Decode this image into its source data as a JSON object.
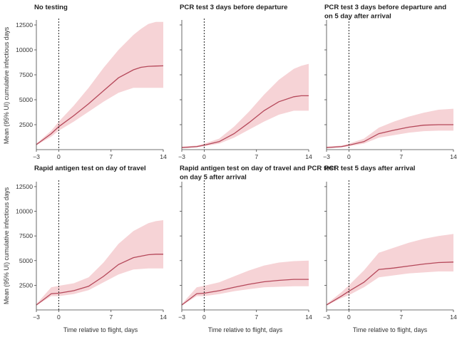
{
  "figure": {
    "ylabel": "Mean (95% UI) cumulative infectious days",
    "xlabel": "Time relative to flight, days"
  },
  "colors": {
    "band": "#f6d3d6",
    "line": "#b5485a",
    "axis": "#444444"
  },
  "chart_data": [
    {
      "type": "area",
      "title_lines": [
        "No testing"
      ],
      "xlabel": "",
      "ylabel": "Mean (95% UI) cumulative infectious days",
      "xlim": [
        -3,
        14
      ],
      "ylim": [
        0,
        13000
      ],
      "xticks": [
        -3,
        0,
        7,
        14
      ],
      "yticks": [
        2500,
        5000,
        7500,
        10000,
        12500
      ],
      "x": [
        -3,
        -1,
        0,
        2,
        4,
        6,
        8,
        10,
        11,
        12,
        13,
        14
      ],
      "mean": [
        500,
        1600,
        2300,
        3400,
        4600,
        5900,
        7200,
        8000,
        8250,
        8350,
        8380,
        8400
      ],
      "lower": [
        450,
        1300,
        1900,
        2800,
        3800,
        4800,
        5700,
        6200,
        6200,
        6200,
        6200,
        6200
      ],
      "upper": [
        600,
        1900,
        2800,
        4400,
        6200,
        8200,
        10000,
        11500,
        12100,
        12600,
        12800,
        12800
      ],
      "vline": 0
    },
    {
      "type": "area",
      "title_lines": [
        "PCR test 3 days before departure"
      ],
      "xlabel": "",
      "ylabel": "",
      "xlim": [
        -3,
        14
      ],
      "ylim": [
        0,
        13000
      ],
      "xticks": [
        -3,
        0,
        7,
        14
      ],
      "yticks": [
        2500,
        5000,
        7500,
        10000,
        12500
      ],
      "x": [
        -3,
        -1,
        0,
        2,
        4,
        6,
        8,
        10,
        12,
        13,
        14
      ],
      "mean": [
        200,
        300,
        450,
        800,
        1600,
        2700,
        3900,
        4800,
        5300,
        5400,
        5400
      ],
      "lower": [
        150,
        250,
        350,
        600,
        1200,
        2000,
        2800,
        3500,
        3900,
        3900,
        3900
      ],
      "upper": [
        300,
        400,
        600,
        1100,
        2300,
        3800,
        5500,
        7000,
        8100,
        8400,
        8600
      ],
      "vline": 0
    },
    {
      "type": "area",
      "title_lines": [
        "PCR test 3 days before departure and",
        "on 5 day after arrival"
      ],
      "xlabel": "",
      "ylabel": "",
      "xlim": [
        -3,
        14
      ],
      "ylim": [
        0,
        13000
      ],
      "xticks": [
        -3,
        0,
        7,
        14
      ],
      "yticks": [
        2500,
        5000,
        7500,
        10000,
        12500
      ],
      "x": [
        -3,
        -1,
        0,
        2,
        4,
        6,
        8,
        10,
        12,
        14
      ],
      "mean": [
        200,
        300,
        450,
        800,
        1600,
        1950,
        2250,
        2450,
        2500,
        2500
      ],
      "lower": [
        150,
        250,
        350,
        600,
        1200,
        1450,
        1700,
        1850,
        1900,
        1900
      ],
      "upper": [
        300,
        400,
        600,
        1100,
        2200,
        2800,
        3300,
        3700,
        4000,
        4100
      ],
      "vline": 0
    },
    {
      "type": "area",
      "title_lines": [
        "Rapid antigen test on day of travel"
      ],
      "xlabel": "Time relative to flight, days",
      "ylabel": "Mean (95% UI) cumulative infectious days",
      "xlim": [
        -3,
        14
      ],
      "ylim": [
        0,
        13000
      ],
      "xticks": [
        -3,
        0,
        7,
        14
      ],
      "yticks": [
        2500,
        5000,
        7500,
        10000,
        12500
      ],
      "x": [
        -3,
        -1,
        0,
        2,
        4,
        6,
        8,
        10,
        12,
        13,
        14
      ],
      "mean": [
        500,
        1650,
        1700,
        1950,
        2400,
        3400,
        4600,
        5300,
        5600,
        5650,
        5650
      ],
      "lower": [
        450,
        1400,
        1400,
        1600,
        2000,
        2800,
        3600,
        4100,
        4200,
        4200,
        4200
      ],
      "upper": [
        600,
        2300,
        2450,
        2700,
        3300,
        4800,
        6700,
        8000,
        8800,
        9000,
        9100
      ],
      "vline": 0
    },
    {
      "type": "area",
      "title_lines": [
        "Rapid antigen test on day of travel and PCR test",
        "on day 5 after arrival"
      ],
      "xlabel": "Time relative to flight, days",
      "ylabel": "",
      "xlim": [
        -3,
        14
      ],
      "ylim": [
        0,
        13000
      ],
      "xticks": [
        -3,
        0,
        7,
        14
      ],
      "yticks": [
        2500,
        5000,
        7500,
        10000,
        12500
      ],
      "x": [
        -3,
        -1,
        0,
        2,
        4,
        6,
        8,
        10,
        12,
        14
      ],
      "mean": [
        500,
        1650,
        1700,
        1950,
        2300,
        2600,
        2850,
        3000,
        3100,
        3100
      ],
      "lower": [
        450,
        1400,
        1400,
        1600,
        1900,
        2100,
        2300,
        2350,
        2400,
        2400
      ],
      "upper": [
        600,
        2300,
        2450,
        2800,
        3400,
        4000,
        4500,
        4800,
        4950,
        5000
      ],
      "vline": 0
    },
    {
      "type": "area",
      "title_lines": [
        "PCR test 5 days after arrival"
      ],
      "xlabel": "Time relative to flight, days",
      "ylabel": "",
      "xlim": [
        -3,
        14
      ],
      "ylim": [
        0,
        13000
      ],
      "xticks": [
        -3,
        0,
        7,
        14
      ],
      "yticks": [
        2500,
        5000,
        7500,
        10000,
        12500
      ],
      "x": [
        -3,
        -1,
        0,
        2,
        4,
        6,
        8,
        10,
        12,
        14
      ],
      "mean": [
        500,
        1400,
        1900,
        2800,
        4100,
        4250,
        4450,
        4650,
        4800,
        4850
      ],
      "lower": [
        450,
        1200,
        1500,
        2300,
        3300,
        3500,
        3700,
        3800,
        3900,
        3900
      ],
      "upper": [
        600,
        1800,
        2500,
        4000,
        5800,
        6300,
        6800,
        7200,
        7500,
        7700
      ],
      "vline": 0
    }
  ]
}
